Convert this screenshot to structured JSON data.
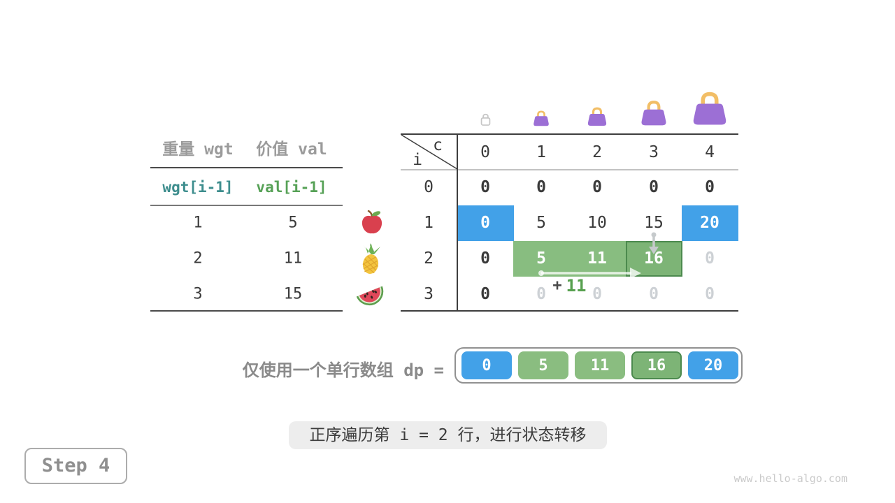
{
  "item_table": {
    "col1_header": "重量 wgt",
    "col2_header": "价值 val",
    "col1_sub": "wgt[i-1]",
    "col2_sub": "val[i-1]",
    "rows": [
      {
        "wgt": "1",
        "val": "5",
        "fruit": "apple-icon"
      },
      {
        "wgt": "2",
        "val": "11",
        "fruit": "pineapple-icon"
      },
      {
        "wgt": "3",
        "val": "15",
        "fruit": "watermelon-icon"
      }
    ]
  },
  "dp_table": {
    "corner_top": "c",
    "corner_bottom": "i",
    "col_headers": [
      "0",
      "1",
      "2",
      "3",
      "4"
    ],
    "row_labels": [
      "0",
      "1",
      "2",
      "3"
    ],
    "cells": [
      [
        "0",
        "0",
        "0",
        "0",
        "0"
      ],
      [
        "0",
        "5",
        "10",
        "15",
        "20"
      ],
      [
        "0",
        "5",
        "11",
        "16",
        "0"
      ],
      [
        "0",
        "0",
        "0",
        "0",
        "0"
      ]
    ],
    "cell_styles": [
      [
        "bold",
        "bold",
        "bold",
        "bold",
        "bold"
      ],
      [
        "white",
        "plain",
        "plain",
        "plain",
        "white"
      ],
      [
        "bold",
        "white",
        "white",
        "white",
        "faint"
      ],
      [
        "bold",
        "faint",
        "faint",
        "faint",
        "faint"
      ]
    ],
    "highlights": {
      "blue_cells": [
        [
          1,
          0
        ],
        [
          1,
          4
        ]
      ],
      "green_band": {
        "row": 2,
        "from": 1,
        "to": 3
      },
      "active_cell": [
        2,
        3
      ]
    },
    "annotation": {
      "plus": "+",
      "value": "11"
    },
    "capacity_icons": [
      "empty-bag-icon",
      "bag-icon-small",
      "bag-icon-medium",
      "bag-icon-large",
      "bag-icon-xlarge"
    ]
  },
  "dp_array": {
    "label": "仅使用一个单行数组 dp =",
    "values": [
      "0",
      "5",
      "11",
      "16",
      "20"
    ],
    "styles": [
      "blue",
      "green",
      "green",
      "green-active",
      "blue"
    ]
  },
  "caption": "正序遍历第 i = 2 行，进行状态转移",
  "step_label": "Step 4",
  "watermark": "www.hello-algo.com",
  "colors": {
    "blue": "#42A1E8",
    "green_band": "#88BD80",
    "green_active_fill": "#7DB476",
    "green_active_border": "#4C8A4E",
    "annotation_green": "#57A04F",
    "teal_code": "#3D8D8D",
    "green_code": "#56A156",
    "bag_purple": "#9C6FD5",
    "bag_handle": "#F2BE66",
    "faint_text": "#CDD1D5",
    "dark_text": "#3A3A3A",
    "gray_header": "#9B9B9B"
  }
}
